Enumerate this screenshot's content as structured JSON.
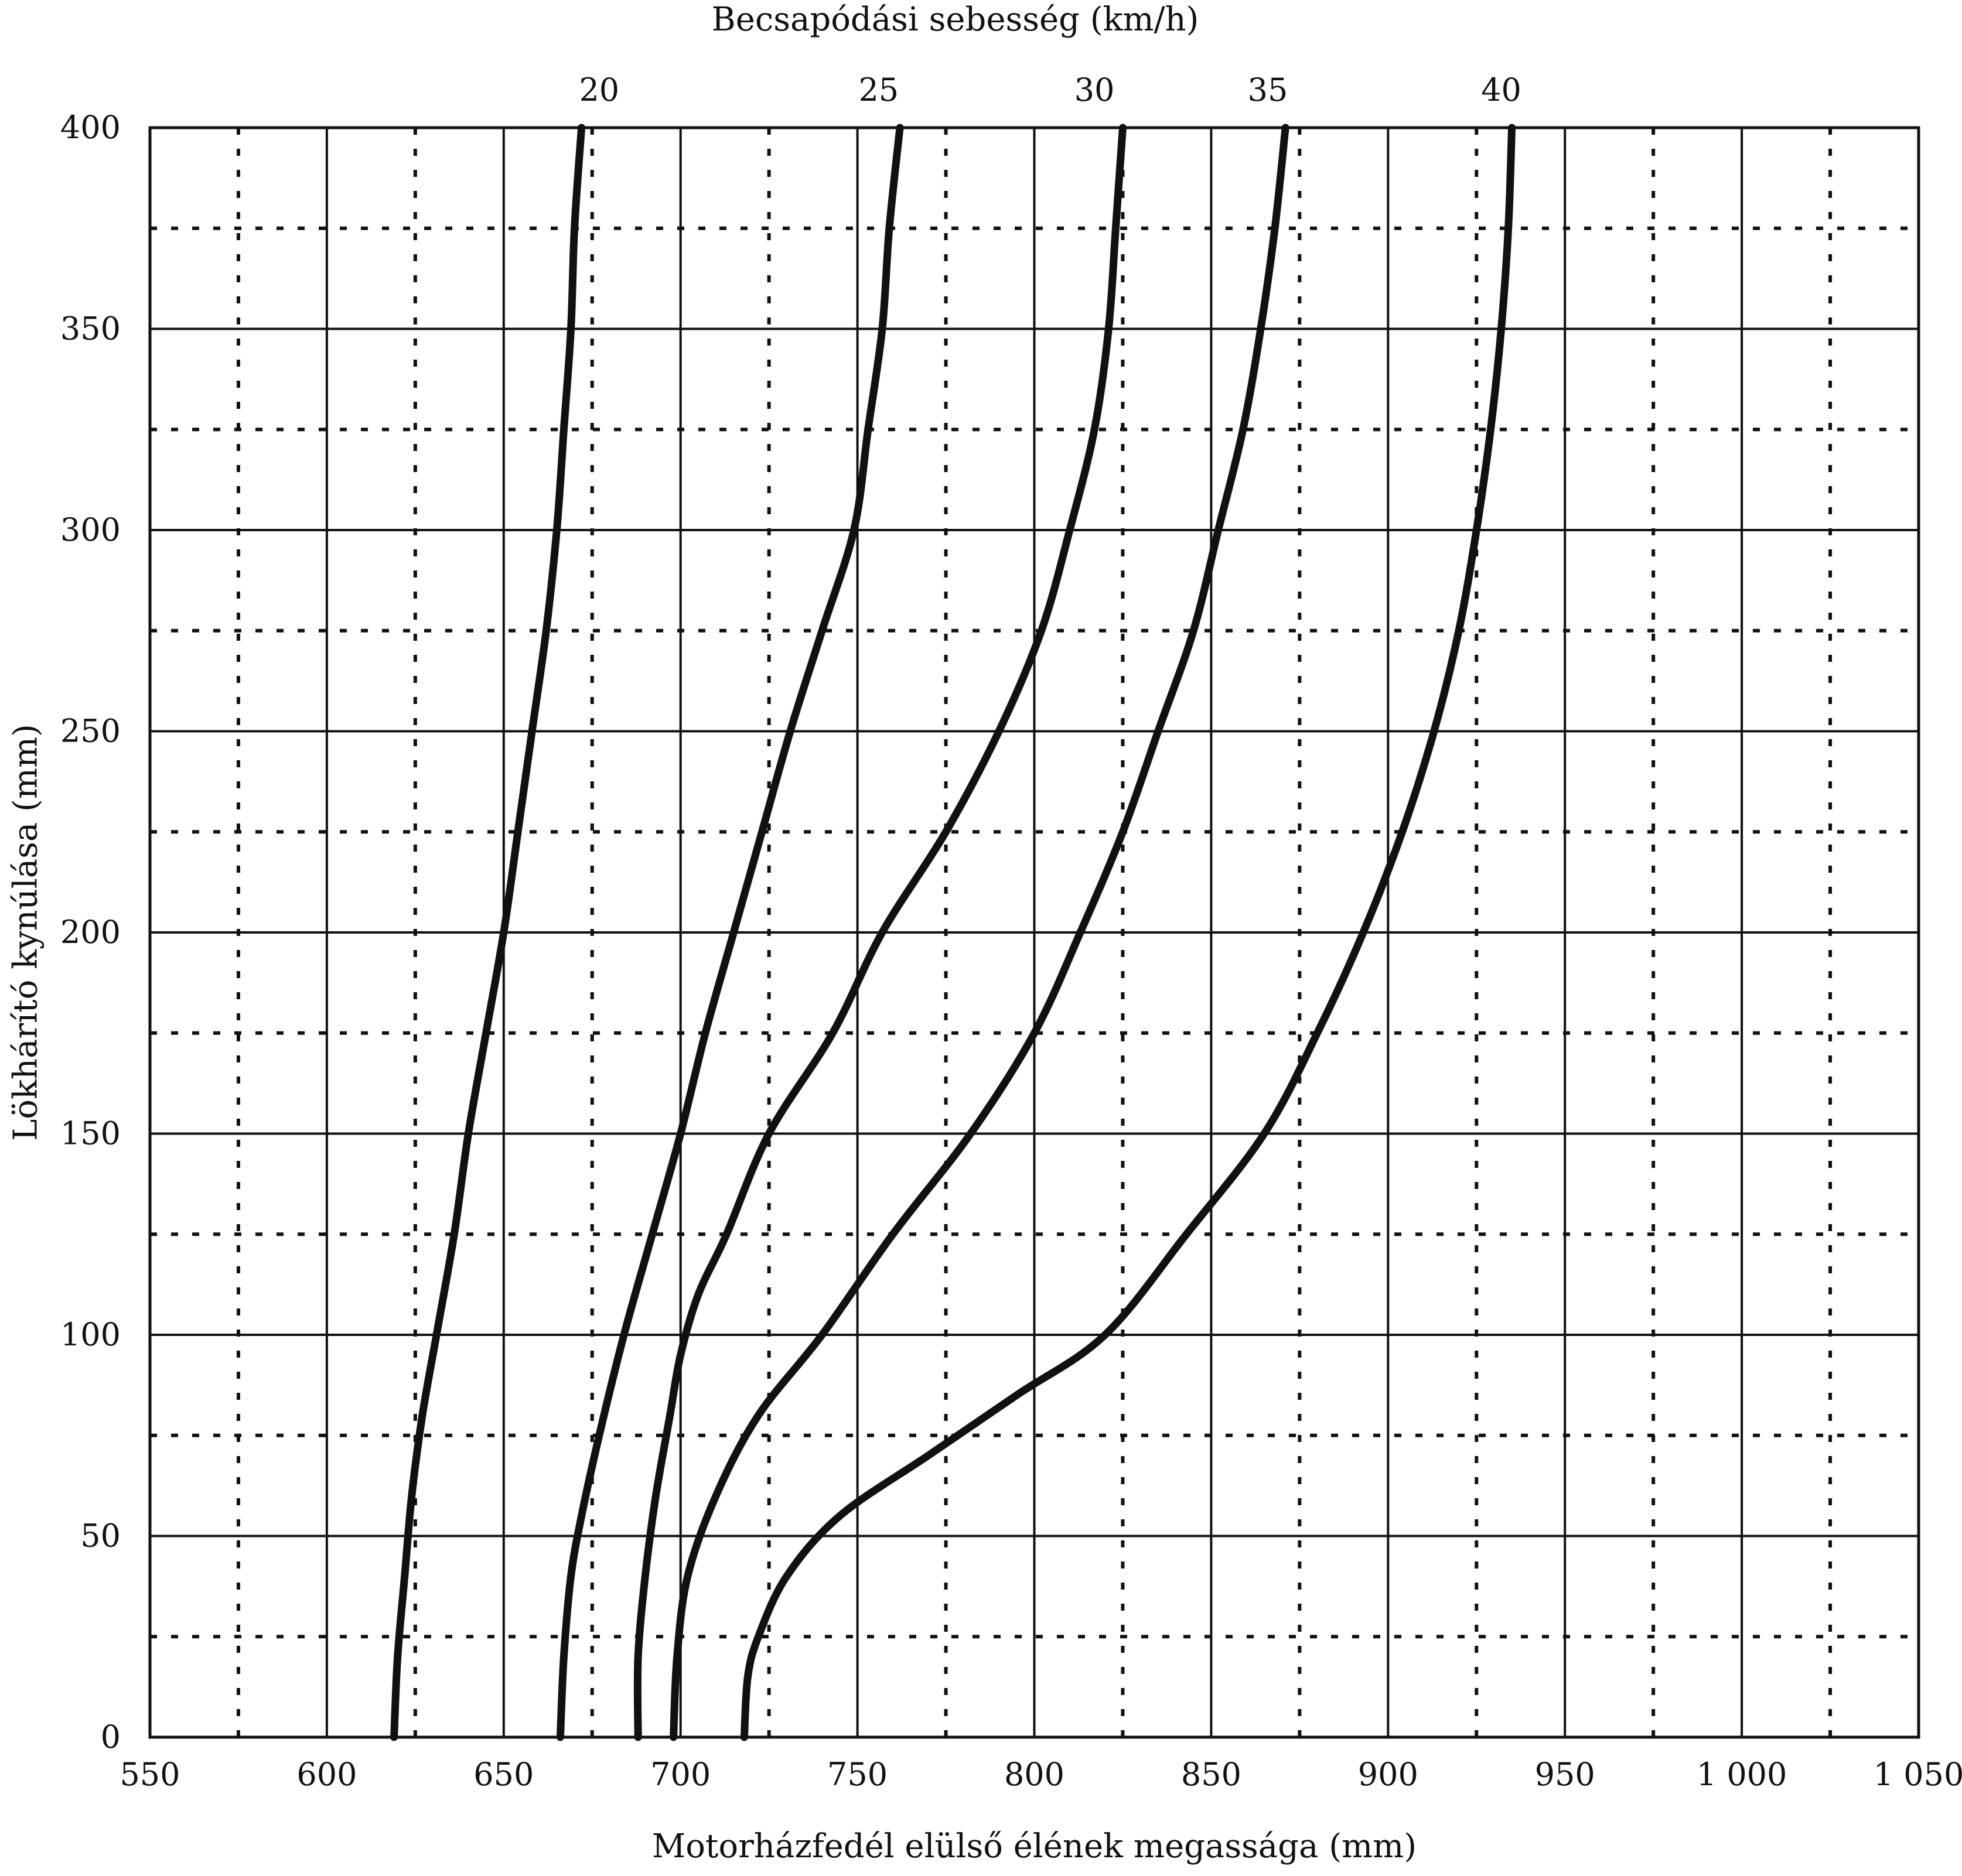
{
  "chart_data": {
    "type": "line",
    "title": "",
    "xlabel": "Motorházfedél elülső élének megassága (mm)",
    "ylabel": "Lökhárító kynúlása (mm)",
    "top_label": "Becsapódási sebesség (km/h)",
    "xlim": [
      550,
      1050
    ],
    "ylim": [
      0,
      400
    ],
    "x_major_ticks": [
      550,
      600,
      650,
      700,
      750,
      800,
      850,
      900,
      950,
      1000,
      1050
    ],
    "x_tick_labels": [
      "550",
      "600",
      "650",
      "700",
      "750",
      "800",
      "850",
      "900",
      "950",
      "1 000",
      "1 050"
    ],
    "x_minor_ticks": [
      575,
      625,
      675,
      725,
      775,
      825,
      875,
      925,
      975,
      1025
    ],
    "y_major_ticks": [
      0,
      50,
      100,
      150,
      200,
      250,
      300,
      350,
      400
    ],
    "y_tick_labels": [
      "0",
      "50",
      "100",
      "150",
      "200",
      "250",
      "300",
      "350",
      "400"
    ],
    "y_minor_ticks": [
      25,
      75,
      125,
      175,
      225,
      275,
      325,
      375
    ],
    "grid": true,
    "series": [
      {
        "name": "20",
        "label_x": 677,
        "points": [
          [
            619,
            0
          ],
          [
            620,
            20
          ],
          [
            622,
            40
          ],
          [
            624,
            60
          ],
          [
            627,
            80
          ],
          [
            631,
            100
          ],
          [
            636,
            125
          ],
          [
            640,
            150
          ],
          [
            645,
            175
          ],
          [
            650,
            200
          ],
          [
            654,
            225
          ],
          [
            658,
            250
          ],
          [
            662,
            275
          ],
          [
            665,
            300
          ],
          [
            667,
            325
          ],
          [
            669,
            350
          ],
          [
            670,
            375
          ],
          [
            672,
            400
          ]
        ]
      },
      {
        "name": "25",
        "label_x": 756,
        "points": [
          [
            666,
            0
          ],
          [
            667,
            20
          ],
          [
            669,
            40
          ],
          [
            672,
            55
          ],
          [
            677,
            75
          ],
          [
            684,
            100
          ],
          [
            692,
            125
          ],
          [
            700,
            150
          ],
          [
            707,
            175
          ],
          [
            715,
            200
          ],
          [
            723,
            225
          ],
          [
            731,
            250
          ],
          [
            740,
            275
          ],
          [
            749,
            300
          ],
          [
            753,
            325
          ],
          [
            757,
            350
          ],
          [
            759,
            375
          ],
          [
            762,
            400
          ]
        ]
      },
      {
        "name": "30",
        "label_x": 817,
        "points": [
          [
            688,
            0
          ],
          [
            688,
            20
          ],
          [
            690,
            40
          ],
          [
            693,
            60
          ],
          [
            697,
            80
          ],
          [
            700,
            95
          ],
          [
            705,
            110
          ],
          [
            713,
            125
          ],
          [
            725,
            150
          ],
          [
            743,
            175
          ],
          [
            757,
            200
          ],
          [
            775,
            225
          ],
          [
            790,
            250
          ],
          [
            802,
            275
          ],
          [
            810,
            300
          ],
          [
            817,
            325
          ],
          [
            821,
            350
          ],
          [
            823,
            375
          ],
          [
            825,
            400
          ]
        ]
      },
      {
        "name": "35",
        "label_x": 866,
        "points": [
          [
            698,
            0
          ],
          [
            699,
            20
          ],
          [
            702,
            40
          ],
          [
            710,
            60
          ],
          [
            722,
            80
          ],
          [
            740,
            100
          ],
          [
            760,
            125
          ],
          [
            782,
            150
          ],
          [
            800,
            175
          ],
          [
            813,
            200
          ],
          [
            825,
            225
          ],
          [
            835,
            250
          ],
          [
            845,
            275
          ],
          [
            852,
            300
          ],
          [
            859,
            325
          ],
          [
            864,
            350
          ],
          [
            868,
            375
          ],
          [
            871,
            400
          ]
        ]
      },
      {
        "name": "40",
        "label_x": 932,
        "points": [
          [
            718,
            0
          ],
          [
            719,
            15
          ],
          [
            722,
            25
          ],
          [
            730,
            40
          ],
          [
            745,
            55
          ],
          [
            770,
            70
          ],
          [
            795,
            85
          ],
          [
            820,
            100
          ],
          [
            843,
            125
          ],
          [
            865,
            150
          ],
          [
            880,
            175
          ],
          [
            893,
            200
          ],
          [
            904,
            225
          ],
          [
            913,
            250
          ],
          [
            920,
            275
          ],
          [
            925,
            300
          ],
          [
            929,
            325
          ],
          [
            932,
            350
          ],
          [
            934,
            375
          ],
          [
            935,
            400
          ]
        ]
      }
    ]
  }
}
